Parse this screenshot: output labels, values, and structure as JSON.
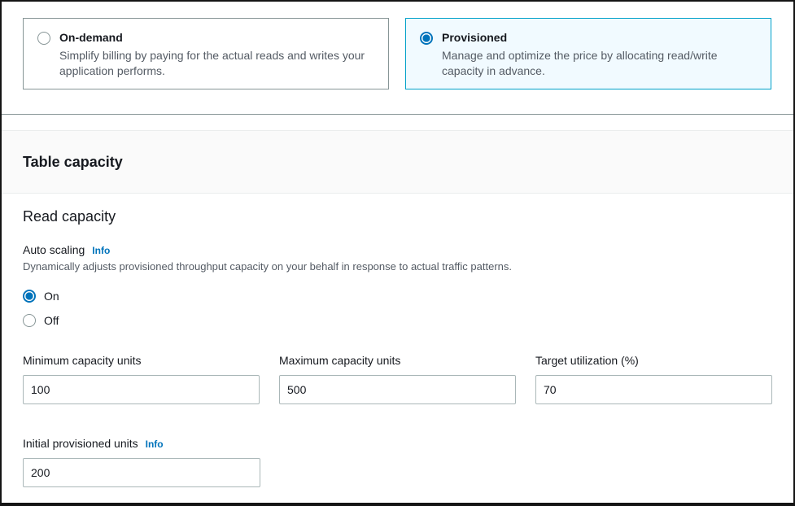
{
  "billing": {
    "options": [
      {
        "label": "On-demand",
        "description": "Simplify billing by paying for the actual reads and writes your application performs.",
        "state": "unselected"
      },
      {
        "label": "Provisioned",
        "description": "Manage and optimize the price by allocating read/write capacity in advance.",
        "state": "selected"
      }
    ]
  },
  "panel": {
    "title": "Table capacity",
    "read_capacity": {
      "title": "Read capacity",
      "auto_scaling": {
        "label": "Auto scaling",
        "info_label": "Info",
        "description": "Dynamically adjusts provisioned throughput capacity on your behalf in response to actual traffic patterns.",
        "options": [
          {
            "label": "On",
            "state": "selected"
          },
          {
            "label": "Off",
            "state": "unselected"
          }
        ]
      },
      "fields": [
        {
          "label": "Minimum capacity units",
          "value": "100"
        },
        {
          "label": "Maximum capacity units",
          "value": "500"
        },
        {
          "label": "Target utilization (%)",
          "value": "70"
        }
      ],
      "initial": {
        "label": "Initial provisioned units",
        "info_label": "Info",
        "value": "200"
      }
    }
  },
  "colors": {
    "accent_link": "#0073bb",
    "selected_card_border": "#00a1c9",
    "selected_card_bg": "#f1faff",
    "text_primary": "#16191f",
    "text_secondary": "#545b64",
    "input_border": "#aab7b8"
  }
}
